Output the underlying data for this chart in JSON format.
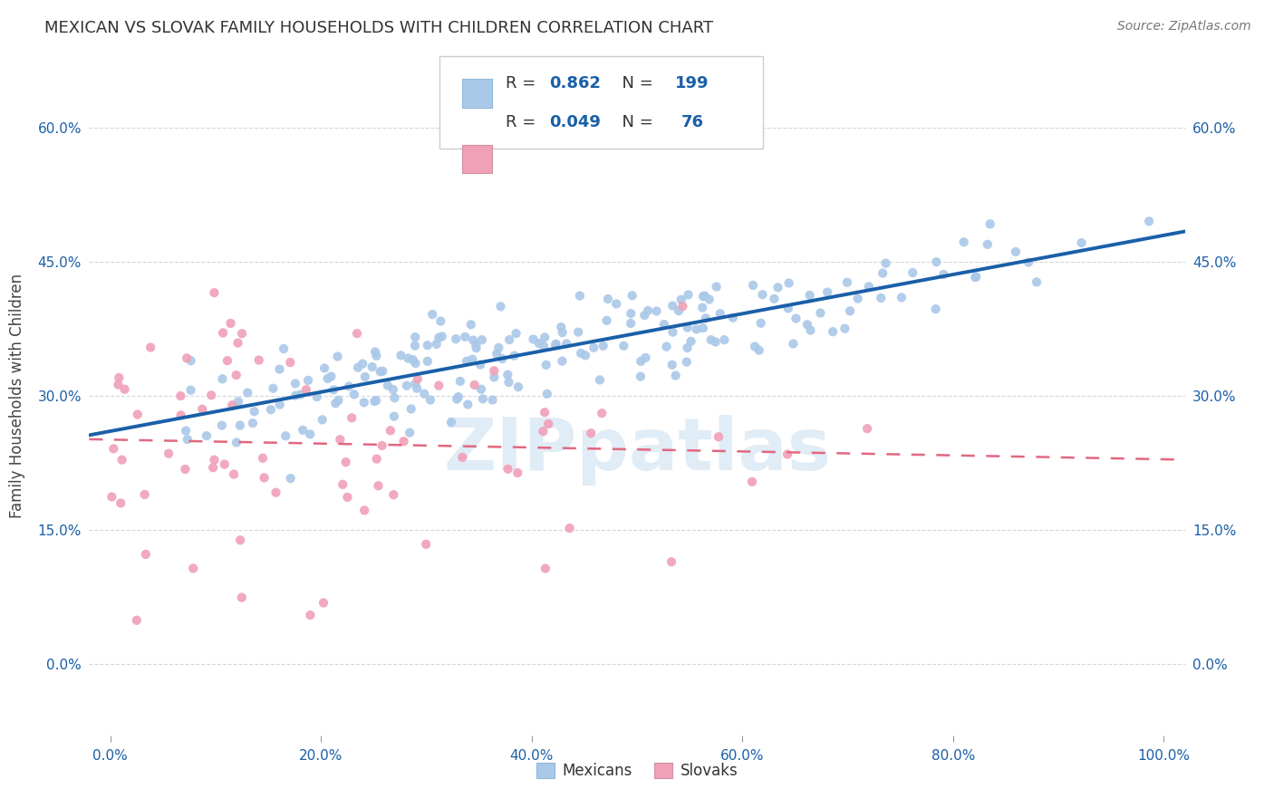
{
  "title": "MEXICAN VS SLOVAK FAMILY HOUSEHOLDS WITH CHILDREN CORRELATION CHART",
  "source": "Source: ZipAtlas.com",
  "ylabel": "Family Households with Children",
  "mexican_R": 0.862,
  "mexican_N": 199,
  "slovak_R": 0.049,
  "slovak_N": 76,
  "xlim": [
    -0.02,
    1.02
  ],
  "ylim": [
    -0.08,
    0.68
  ],
  "yticks": [
    0.0,
    0.15,
    0.3,
    0.45,
    0.6
  ],
  "xticks": [
    0.0,
    0.2,
    0.4,
    0.6,
    0.8,
    1.0
  ],
  "blue_scatter_color": "#aac8e8",
  "blue_line_color": "#1a5fa8",
  "pink_scatter_color": "#f0a0b8",
  "pink_line_color": "#e06880",
  "grid_color": "#cccccc",
  "tick_label_color": "#1a5fa8",
  "title_color": "#333333",
  "background_color": "#ffffff",
  "legend_blue_face": "#aac8e8",
  "legend_pink_face": "#f0a0b8",
  "watermark_color": "#c8ddf0",
  "seed_mexican": 42,
  "seed_slovak": 7
}
